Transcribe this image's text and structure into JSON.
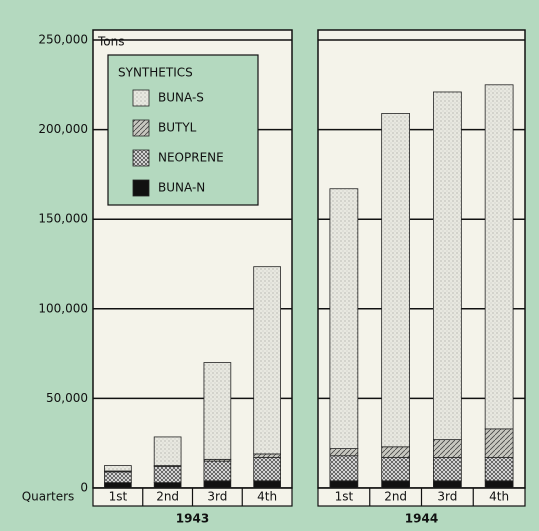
{
  "chart_data": {
    "type": "bar",
    "stacked": true,
    "y_label": "Tons",
    "x_label": "Quarters",
    "legend_title": "SYNTHETICS",
    "ylim": [
      0,
      250000
    ],
    "yticks": [
      0,
      {
        "value": 50000,
        "label": "50,000"
      },
      {
        "value": 100000,
        "label": "100,000"
      },
      {
        "value": 150000,
        "label": "150,000"
      },
      {
        "value": 200000,
        "label": "200,000"
      },
      {
        "value": 250000,
        "label": "250,000"
      }
    ],
    "grid": true,
    "series": [
      {
        "name": "BUNA-S",
        "color": "#e8e8e0"
      },
      {
        "name": "BUTYL",
        "color": "#c8c8c0"
      },
      {
        "name": "NEOPRENE",
        "color": "#555555"
      },
      {
        "name": "BUNA-N",
        "color": "#111111"
      }
    ],
    "panels": [
      {
        "label": "1943",
        "categories": [
          "1st",
          "2nd",
          "3rd",
          "4th"
        ],
        "values": [
          [
            3000,
            16000,
            54000,
            104500
          ],
          [
            500,
            500,
            1000,
            2000
          ],
          [
            6000,
            9000,
            11000,
            13000
          ],
          [
            3000,
            3000,
            4000,
            4000
          ]
        ]
      },
      {
        "label": "1944",
        "categories": [
          "1st",
          "2nd",
          "3rd",
          "4th"
        ],
        "values": [
          [
            145000,
            186000,
            194000,
            192000
          ],
          [
            4000,
            6000,
            10000,
            16000
          ],
          [
            14000,
            13000,
            13000,
            13000
          ],
          [
            4000,
            4000,
            4000,
            4000
          ]
        ]
      }
    ]
  }
}
